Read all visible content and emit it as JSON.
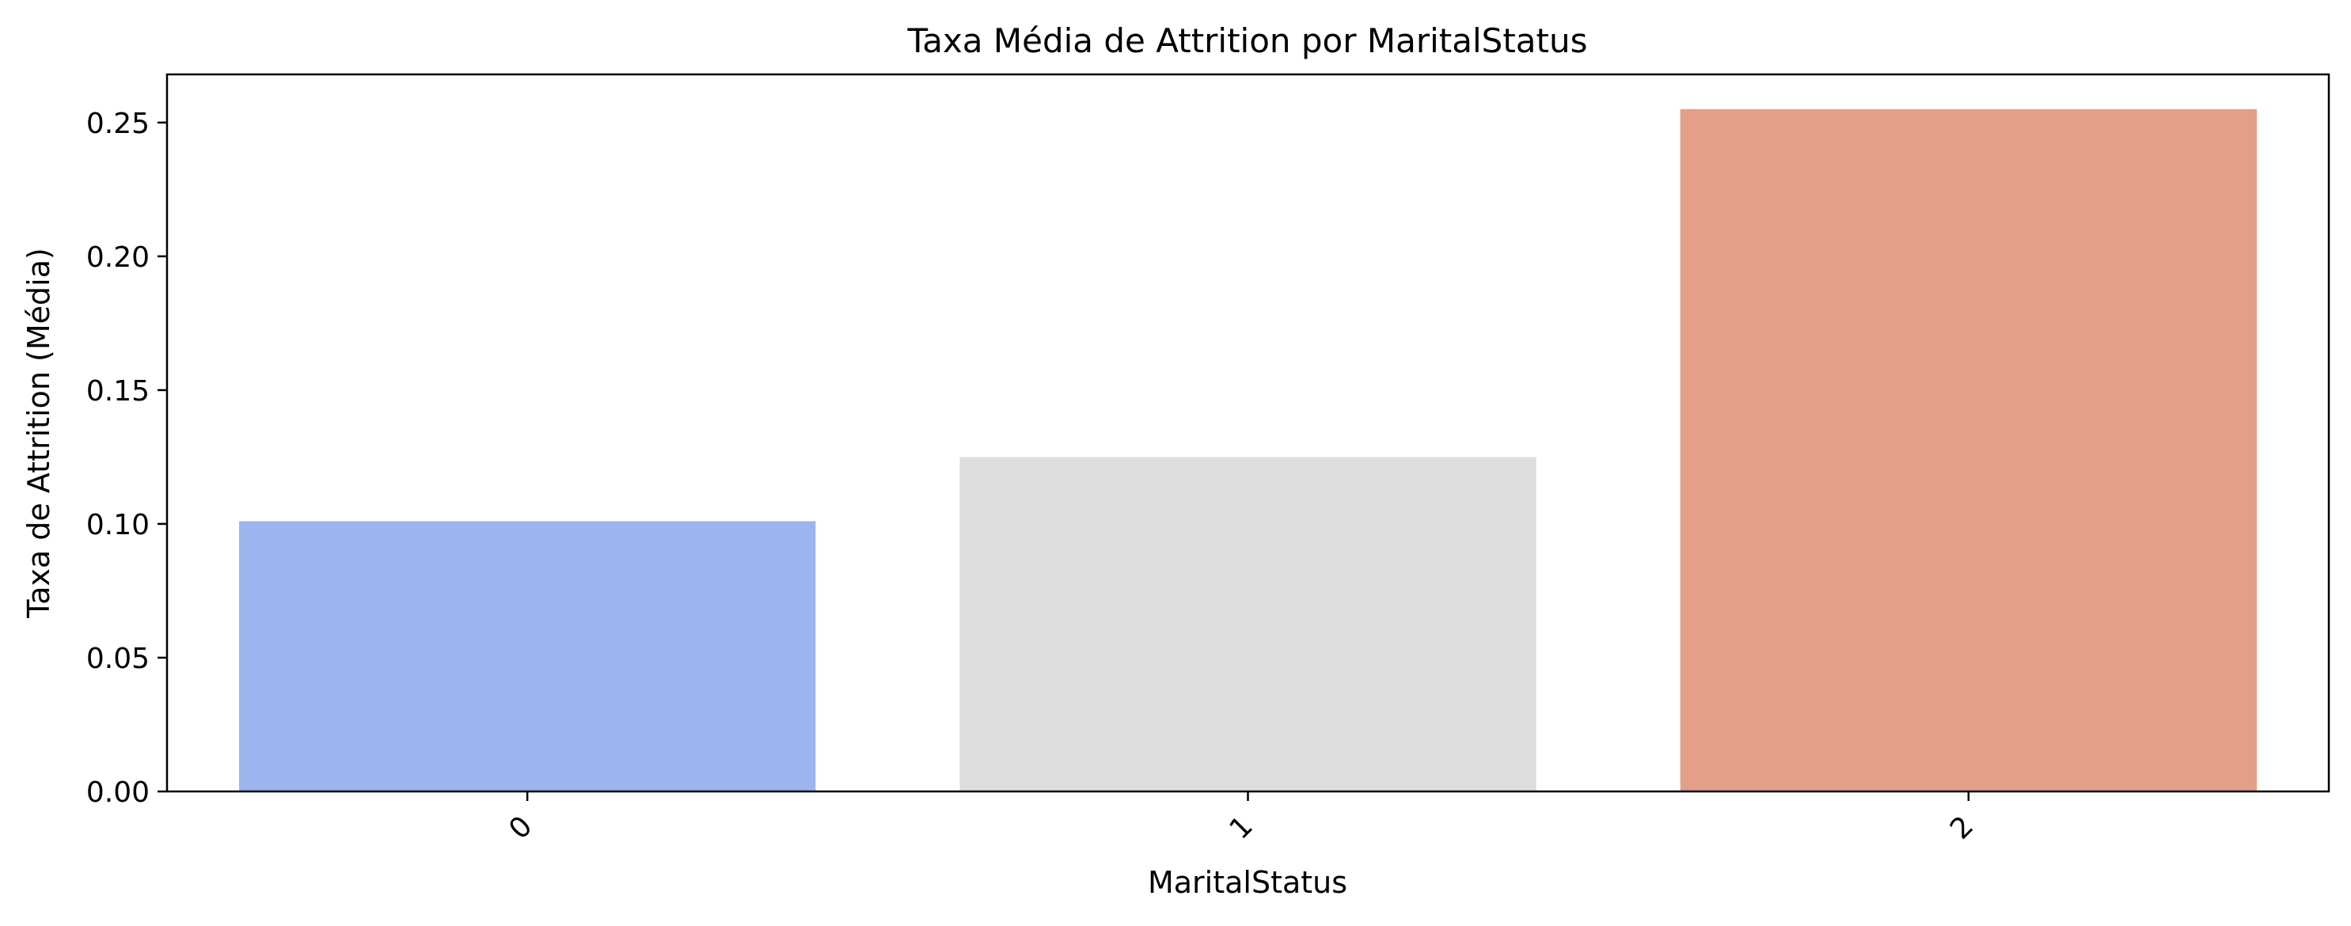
{
  "chart_data": {
    "type": "bar",
    "title": "Taxa Média de Attrition por MaritalStatus",
    "xlabel": "MaritalStatus",
    "ylabel": "Taxa de Attrition (Média)",
    "categories": [
      "0",
      "1",
      "2"
    ],
    "values": [
      0.101,
      0.125,
      0.255
    ],
    "colors": [
      "#9bb5ee",
      "#dddddd",
      "#e39f88"
    ],
    "ylim": [
      0,
      0.268
    ],
    "yticks": [
      "0.00",
      "0.05",
      "0.10",
      "0.15",
      "0.20",
      "0.25"
    ],
    "x_tick_rotation": "45",
    "grid": false,
    "legend": "none"
  }
}
